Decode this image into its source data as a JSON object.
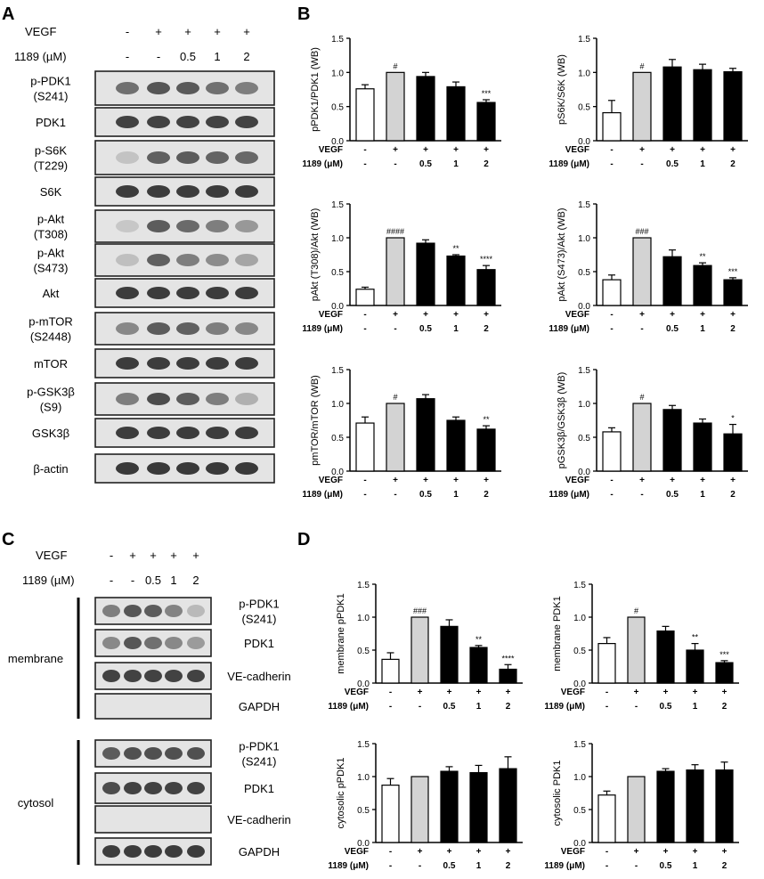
{
  "panel_letters": {
    "a": "A",
    "b": "B",
    "c": "C",
    "d": "D"
  },
  "conditions": {
    "row1_label": "VEGF",
    "row2_label": "1189 (µM)",
    "row2_label_charts": "1189 (μM)",
    "vegf": [
      "-",
      "+",
      "+",
      "+",
      "+"
    ],
    "dose": [
      "-",
      "-",
      "0.5",
      "1",
      "2"
    ]
  },
  "blot_a": {
    "lanes": 5,
    "rows": [
      {
        "label": "p-PDK1\n(S241)",
        "intensity": [
          0.62,
          0.75,
          0.73,
          0.62,
          0.55
        ]
      },
      {
        "label": "PDK1",
        "intensity": [
          0.85,
          0.85,
          0.85,
          0.85,
          0.85
        ]
      },
      {
        "label": "p-S6K\n(T229)",
        "intensity": [
          0.2,
          0.7,
          0.72,
          0.68,
          0.66
        ]
      },
      {
        "label": "S6K",
        "intensity": [
          0.88,
          0.88,
          0.88,
          0.88,
          0.88
        ]
      },
      {
        "label": "p-Akt\n(T308)",
        "intensity": [
          0.18,
          0.72,
          0.65,
          0.55,
          0.42
        ]
      },
      {
        "label": "p-Akt\n(S473)",
        "intensity": [
          0.22,
          0.7,
          0.55,
          0.48,
          0.35
        ]
      },
      {
        "label": "Akt",
        "intensity": [
          0.88,
          0.88,
          0.88,
          0.88,
          0.88
        ]
      },
      {
        "label": "p-mTOR\n(S2448)",
        "intensity": [
          0.5,
          0.72,
          0.7,
          0.55,
          0.5
        ]
      },
      {
        "label": "mTOR",
        "intensity": [
          0.88,
          0.88,
          0.88,
          0.88,
          0.88
        ]
      },
      {
        "label": "p-GSK3β\n(S9)",
        "intensity": [
          0.55,
          0.8,
          0.72,
          0.55,
          0.3
        ]
      },
      {
        "label": "GSK3β",
        "intensity": [
          0.88,
          0.88,
          0.88,
          0.88,
          0.88
        ]
      },
      {
        "label": "β-actin",
        "intensity": [
          0.9,
          0.9,
          0.9,
          0.9,
          0.9
        ]
      }
    ]
  },
  "blot_c": {
    "groups": [
      {
        "name": "membrane",
        "rows": [
          {
            "label": "p-PDK1\n(S241)",
            "intensity": [
              0.55,
              0.75,
              0.72,
              0.52,
              0.25
            ]
          },
          {
            "label": "PDK1",
            "intensity": [
              0.5,
              0.75,
              0.62,
              0.5,
              0.4
            ]
          },
          {
            "label": "VE-cadherin",
            "intensity": [
              0.85,
              0.85,
              0.85,
              0.85,
              0.85
            ]
          },
          {
            "label": "GAPDH",
            "intensity": [
              0.0,
              0.0,
              0.0,
              0.0,
              0.0
            ]
          }
        ]
      },
      {
        "name": "cytosol",
        "rows": [
          {
            "label": "p-PDK1\n(S241)",
            "intensity": [
              0.72,
              0.78,
              0.78,
              0.78,
              0.78
            ]
          },
          {
            "label": "PDK1",
            "intensity": [
              0.8,
              0.85,
              0.85,
              0.85,
              0.85
            ]
          },
          {
            "label": "VE-cadherin",
            "intensity": [
              0.0,
              0.0,
              0.0,
              0.0,
              0.0
            ]
          },
          {
            "label": "GAPDH",
            "intensity": [
              0.88,
              0.88,
              0.88,
              0.88,
              0.88
            ]
          }
        ]
      }
    ]
  },
  "chart_data": [
    {
      "type": "bar",
      "panel": "B",
      "ylabel": "pPDK1/PDK1 (WB)",
      "categories": [
        "1",
        "2",
        "3",
        "4",
        "5"
      ],
      "values": [
        0.76,
        1.0,
        0.94,
        0.79,
        0.56
      ],
      "errors": [
        0.06,
        0.0,
        0.06,
        0.07,
        0.04
      ],
      "annotations": [
        "",
        "#",
        "",
        "",
        "***"
      ],
      "ylim": [
        0,
        1.5
      ],
      "yticks": [
        "0.0",
        "0.5",
        "1.0",
        "1.5"
      ],
      "bar_colors": [
        "#ffffff",
        "#d3d3d3",
        "#000000",
        "#000000",
        "#000000"
      ]
    },
    {
      "type": "bar",
      "panel": "B",
      "ylabel": "pS6K/S6K (WB)",
      "categories": [
        "1",
        "2",
        "3",
        "4",
        "5"
      ],
      "values": [
        0.41,
        1.0,
        1.08,
        1.04,
        1.01
      ],
      "errors": [
        0.18,
        0.0,
        0.11,
        0.08,
        0.05
      ],
      "annotations": [
        "",
        "#",
        "",
        "",
        ""
      ],
      "ylim": [
        0,
        1.5
      ],
      "yticks": [
        "0.0",
        "0.5",
        "1.0",
        "1.5"
      ],
      "bar_colors": [
        "#ffffff",
        "#d3d3d3",
        "#000000",
        "#000000",
        "#000000"
      ]
    },
    {
      "type": "bar",
      "panel": "B",
      "ylabel": "pAkt (T308)/Akt (WB)",
      "categories": [
        "1",
        "2",
        "3",
        "4",
        "5"
      ],
      "values": [
        0.24,
        1.0,
        0.92,
        0.73,
        0.53
      ],
      "errors": [
        0.03,
        0.0,
        0.05,
        0.02,
        0.06
      ],
      "annotations": [
        "",
        "####",
        "",
        "**",
        "****"
      ],
      "ylim": [
        0,
        1.5
      ],
      "yticks": [
        "0.0",
        "0.5",
        "1.0",
        "1.5"
      ],
      "bar_colors": [
        "#ffffff",
        "#d3d3d3",
        "#000000",
        "#000000",
        "#000000"
      ]
    },
    {
      "type": "bar",
      "panel": "B",
      "ylabel": "pAkt (S473)/Akt (WB)",
      "categories": [
        "1",
        "2",
        "3",
        "4",
        "5"
      ],
      "values": [
        0.38,
        1.0,
        0.72,
        0.59,
        0.38
      ],
      "errors": [
        0.07,
        0.0,
        0.1,
        0.04,
        0.03
      ],
      "annotations": [
        "",
        "###",
        "",
        "**",
        "***"
      ],
      "ylim": [
        0,
        1.5
      ],
      "yticks": [
        "0.0",
        "0.5",
        "1.0",
        "1.5"
      ],
      "bar_colors": [
        "#ffffff",
        "#d3d3d3",
        "#000000",
        "#000000",
        "#000000"
      ]
    },
    {
      "type": "bar",
      "panel": "B",
      "ylabel": "pmTOR/mTOR (WB)",
      "categories": [
        "1",
        "2",
        "3",
        "4",
        "5"
      ],
      "values": [
        0.71,
        1.0,
        1.07,
        0.75,
        0.62
      ],
      "errors": [
        0.09,
        0.0,
        0.06,
        0.05,
        0.05
      ],
      "annotations": [
        "",
        "#",
        "",
        "",
        "**"
      ],
      "ylim": [
        0,
        1.5
      ],
      "yticks": [
        "0.0",
        "0.5",
        "1.0",
        "1.5"
      ],
      "bar_colors": [
        "#ffffff",
        "#d3d3d3",
        "#000000",
        "#000000",
        "#000000"
      ]
    },
    {
      "type": "bar",
      "panel": "B",
      "ylabel": "pGSK3β/GSK3β (WB)",
      "categories": [
        "1",
        "2",
        "3",
        "4",
        "5"
      ],
      "values": [
        0.58,
        1.0,
        0.91,
        0.71,
        0.55
      ],
      "errors": [
        0.06,
        0.0,
        0.06,
        0.06,
        0.14
      ],
      "annotations": [
        "",
        "#",
        "",
        "",
        "*"
      ],
      "ylim": [
        0,
        1.5
      ],
      "yticks": [
        "0.0",
        "0.5",
        "1.0",
        "1.5"
      ],
      "bar_colors": [
        "#ffffff",
        "#d3d3d3",
        "#000000",
        "#000000",
        "#000000"
      ]
    },
    {
      "type": "bar",
      "panel": "D",
      "ylabel": "membrane pPDK1",
      "categories": [
        "1",
        "2",
        "3",
        "4",
        "5"
      ],
      "values": [
        0.36,
        1.0,
        0.86,
        0.54,
        0.21
      ],
      "errors": [
        0.1,
        0.0,
        0.1,
        0.03,
        0.07
      ],
      "annotations": [
        "",
        "###",
        "",
        "**",
        "****"
      ],
      "ylim": [
        0,
        1.5
      ],
      "yticks": [
        "0.0",
        "0.5",
        "1.0",
        "1.5"
      ],
      "bar_colors": [
        "#ffffff",
        "#d3d3d3",
        "#000000",
        "#000000",
        "#000000"
      ]
    },
    {
      "type": "bar",
      "panel": "D",
      "ylabel": "membrane PDK1",
      "categories": [
        "1",
        "2",
        "3",
        "4",
        "5"
      ],
      "values": [
        0.6,
        1.0,
        0.79,
        0.5,
        0.31
      ],
      "errors": [
        0.09,
        0.0,
        0.07,
        0.1,
        0.03
      ],
      "annotations": [
        "",
        "#",
        "",
        "**",
        "***"
      ],
      "ylim": [
        0,
        1.5
      ],
      "yticks": [
        "0.0",
        "0.5",
        "1.0",
        "1.5"
      ],
      "bar_colors": [
        "#ffffff",
        "#d3d3d3",
        "#000000",
        "#000000",
        "#000000"
      ]
    },
    {
      "type": "bar",
      "panel": "D",
      "ylabel": "cytosolic pPDK1",
      "categories": [
        "1",
        "2",
        "3",
        "4",
        "5"
      ],
      "values": [
        0.87,
        1.0,
        1.08,
        1.06,
        1.12
      ],
      "errors": [
        0.1,
        0.0,
        0.07,
        0.11,
        0.18
      ],
      "annotations": [
        "",
        "",
        "",
        "",
        ""
      ],
      "ylim": [
        0,
        1.5
      ],
      "yticks": [
        "0.0",
        "0.5",
        "1.0",
        "1.5"
      ],
      "bar_colors": [
        "#ffffff",
        "#d3d3d3",
        "#000000",
        "#000000",
        "#000000"
      ]
    },
    {
      "type": "bar",
      "panel": "D",
      "ylabel": "cytosolic PDK1",
      "categories": [
        "1",
        "2",
        "3",
        "4",
        "5"
      ],
      "values": [
        0.72,
        1.0,
        1.08,
        1.1,
        1.1
      ],
      "errors": [
        0.06,
        0.0,
        0.04,
        0.08,
        0.12
      ],
      "annotations": [
        "",
        "",
        "",
        "",
        ""
      ],
      "ylim": [
        0,
        1.5
      ],
      "yticks": [
        "0.0",
        "0.5",
        "1.0",
        "1.5"
      ],
      "bar_colors": [
        "#ffffff",
        "#d3d3d3",
        "#000000",
        "#000000",
        "#000000"
      ]
    }
  ]
}
